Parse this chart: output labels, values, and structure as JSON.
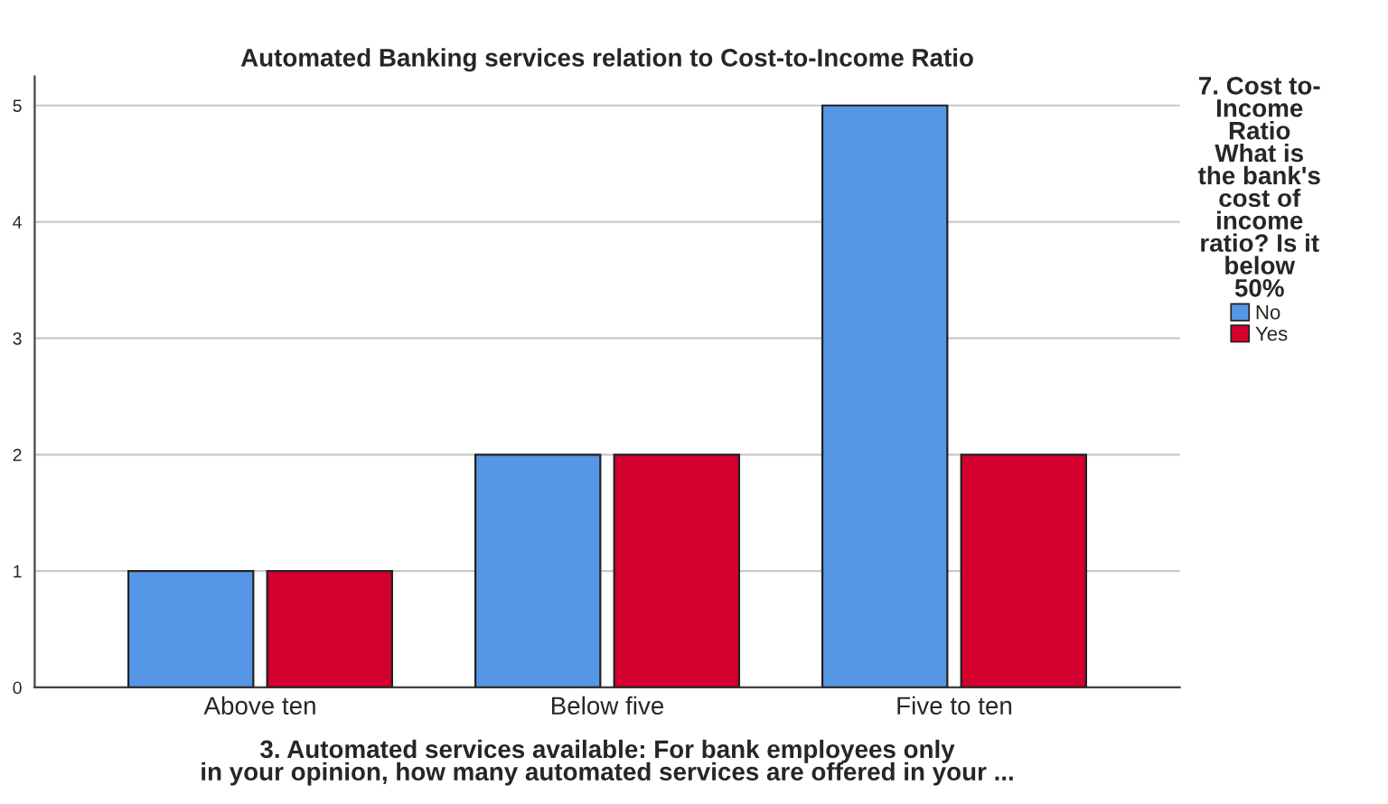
{
  "chart_data": {
    "type": "bar",
    "title": "Automated Banking services relation to Cost-to-Income Ratio",
    "xlabel": "3. Automated services available: For bank employees only\nin your opinion, how many automated services are offered in your ...",
    "legend_title": "7. Cost to-\nIncome\nRatio\nWhat is\nthe bank's\ncost of\nincome\nratio? Is it\nbelow\n50%",
    "categories": [
      "Above ten",
      "Below five",
      "Five to ten"
    ],
    "series": [
      {
        "name": "No",
        "color": "#5596e6",
        "values": [
          1,
          2,
          5
        ]
      },
      {
        "name": "Yes",
        "color": "#d3002f",
        "values": [
          1,
          2,
          2
        ]
      }
    ],
    "ylim": [
      0,
      5.25
    ],
    "yticks": [
      0,
      1,
      2,
      3,
      4,
      5
    ],
    "grid": "y",
    "legend": "top right"
  }
}
